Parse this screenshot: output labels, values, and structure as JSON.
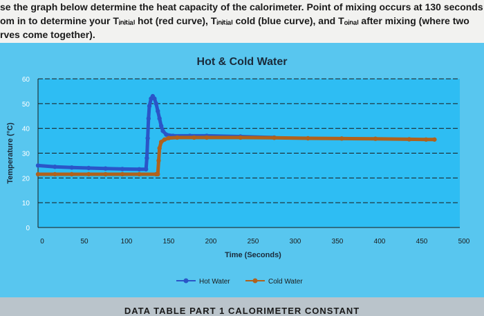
{
  "instructions": {
    "line1": "se the graph below determine the heat capacity of the calorimeter. Point of mixing occurs at 130 seconds",
    "line2": "om in to determine your Tᵢₙᵢₜᵢₐₗ hot (red curve), Tᵢₙᵢₜᵢₐₗ cold (blue curve), and Tₒᵢₙₐₗ after mixing (where two",
    "line3": "rves come together)."
  },
  "footer_text": "DATA TABLE PART 1 CALORIMETER CONSTANT",
  "colors": {
    "panel": "#58c6ef",
    "plot_area": "#2ebdf3",
    "hot": "#2a55c8",
    "cold": "#b0621c",
    "grid": "#1a1a1a"
  },
  "chart_data": {
    "type": "line",
    "title": "Hot & Cold Water",
    "xlabel": "Time (Seconds)",
    "ylabel": "Temperature (°C)",
    "xlim": [
      0,
      500
    ],
    "ylim": [
      0,
      60
    ],
    "xticks": [
      0,
      50,
      100,
      150,
      200,
      250,
      300,
      350,
      400,
      450,
      500
    ],
    "yticks": [
      0,
      10,
      20,
      30,
      40,
      50,
      60
    ],
    "grid": true,
    "legend_position": "bottom",
    "series": [
      {
        "name": "Hot Water",
        "color": "#2a55c8",
        "points": [
          [
            0,
            25
          ],
          [
            20,
            24.5
          ],
          [
            40,
            24.2
          ],
          [
            60,
            24
          ],
          [
            80,
            23.8
          ],
          [
            100,
            23.6
          ],
          [
            120,
            23.5
          ],
          [
            128,
            23.5
          ],
          [
            129,
            28
          ],
          [
            130,
            36
          ],
          [
            131,
            44
          ],
          [
            132,
            49
          ],
          [
            134,
            52
          ],
          [
            136,
            53
          ],
          [
            138,
            52
          ],
          [
            140,
            50
          ],
          [
            142,
            47
          ],
          [
            144,
            44
          ],
          [
            146,
            41
          ],
          [
            148,
            39
          ],
          [
            152,
            37.5
          ],
          [
            160,
            37
          ],
          [
            180,
            37
          ],
          [
            200,
            37
          ],
          [
            240,
            36.7
          ],
          [
            280,
            36.3
          ]
        ]
      },
      {
        "name": "Cold Water",
        "color": "#b0621c",
        "points": [
          [
            0,
            21.5
          ],
          [
            20,
            21.5
          ],
          [
            40,
            21.5
          ],
          [
            60,
            21.5
          ],
          [
            80,
            21.5
          ],
          [
            100,
            21.5
          ],
          [
            120,
            21.5
          ],
          [
            140,
            21.5
          ],
          [
            142,
            21.5
          ],
          [
            143,
            27
          ],
          [
            144,
            32
          ],
          [
            146,
            34.5
          ],
          [
            150,
            35.5
          ],
          [
            155,
            36.1
          ],
          [
            165,
            36.3
          ],
          [
            185,
            36.3
          ],
          [
            200,
            36.3
          ],
          [
            240,
            36.3
          ],
          [
            280,
            36.2
          ],
          [
            320,
            36
          ],
          [
            360,
            35.9
          ],
          [
            400,
            35.8
          ],
          [
            440,
            35.6
          ],
          [
            460,
            35.5
          ],
          [
            470,
            35.5
          ]
        ]
      }
    ]
  }
}
